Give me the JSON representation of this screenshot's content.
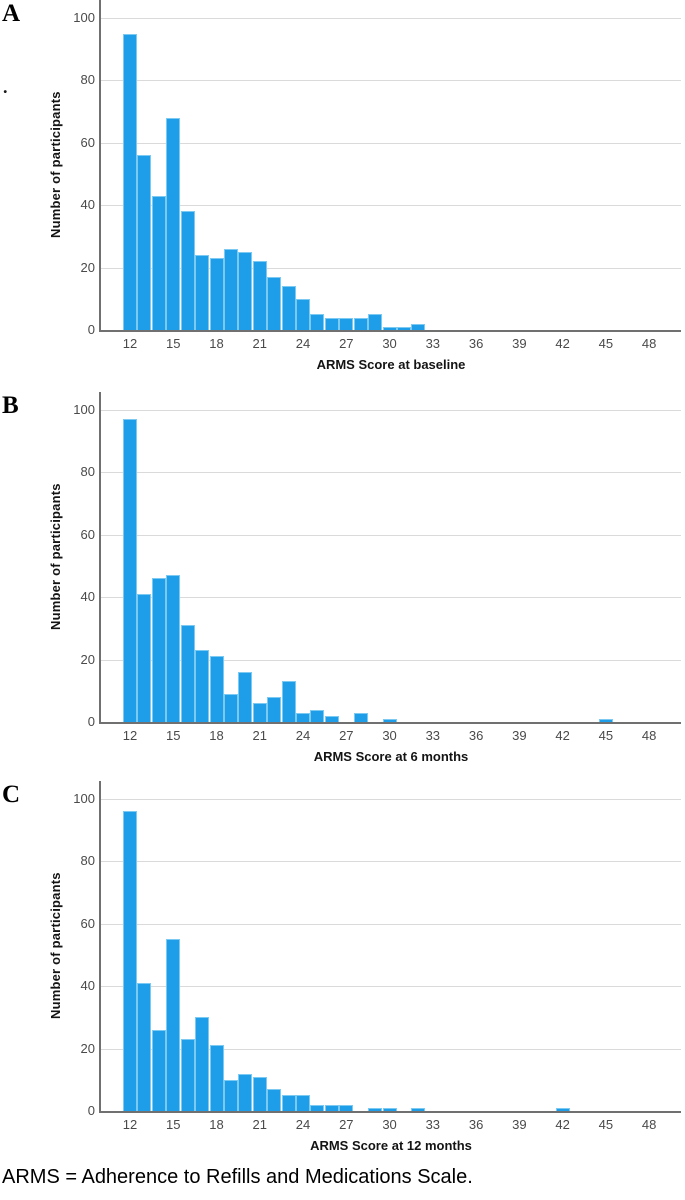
{
  "figure": {
    "footnote": "ARMS = Adherence to Refills and Medications Scale.",
    "stray_mark": "."
  },
  "colors": {
    "bar_fill": "#1E9DE9",
    "bar_border": "#7CC9F2",
    "gridline": "#DADADA",
    "axis_line": "#707070",
    "tick_label": "#4A4A4A",
    "axis_title": "#141414"
  },
  "chart_data": [
    {
      "type": "bar",
      "panel_label": "A",
      "title": "",
      "xlabel": "ARMS Score at baseline",
      "ylabel": "Number of participants",
      "x_start": 12,
      "x_ticks": [
        12,
        15,
        18,
        21,
        24,
        27,
        30,
        33,
        36,
        39,
        42,
        45,
        48
      ],
      "y_ticks": [
        0,
        20,
        40,
        60,
        80,
        100
      ],
      "ylim": [
        0,
        105
      ],
      "grid": true,
      "values": [
        95,
        56,
        43,
        68,
        38,
        24,
        23,
        26,
        25,
        22,
        17,
        14,
        10,
        5,
        4,
        4,
        4,
        5,
        1,
        1,
        2,
        0,
        0,
        0,
        0,
        0,
        0,
        0,
        0,
        0,
        0,
        0,
        0,
        0,
        0,
        0,
        0
      ]
    },
    {
      "type": "bar",
      "panel_label": "B",
      "title": "",
      "xlabel": "ARMS Score at 6 months",
      "ylabel": "Number of participants",
      "x_start": 12,
      "x_ticks": [
        12,
        15,
        18,
        21,
        24,
        27,
        30,
        33,
        36,
        39,
        42,
        45,
        48
      ],
      "y_ticks": [
        0,
        20,
        40,
        60,
        80,
        100
      ],
      "ylim": [
        0,
        105
      ],
      "grid": true,
      "values": [
        97,
        41,
        46,
        47,
        31,
        23,
        21,
        9,
        16,
        6,
        8,
        13,
        3,
        4,
        2,
        0,
        3,
        0,
        1,
        0,
        0,
        0,
        0,
        0,
        0,
        0,
        0,
        0,
        0,
        0,
        0,
        0,
        0,
        1,
        0,
        0,
        0
      ]
    },
    {
      "type": "bar",
      "panel_label": "C",
      "title": "",
      "xlabel": "ARMS Score at 12 months",
      "ylabel": "Number of participants",
      "x_start": 12,
      "x_ticks": [
        12,
        15,
        18,
        21,
        24,
        27,
        30,
        33,
        36,
        39,
        42,
        45,
        48
      ],
      "y_ticks": [
        0,
        20,
        40,
        60,
        80,
        100
      ],
      "ylim": [
        0,
        105
      ],
      "grid": true,
      "values": [
        96,
        41,
        26,
        55,
        23,
        30,
        21,
        10,
        12,
        11,
        7,
        5,
        5,
        2,
        2,
        2,
        0,
        1,
        1,
        0,
        1,
        0,
        0,
        0,
        0,
        0,
        0,
        0,
        0,
        0,
        1,
        0,
        0,
        0,
        0,
        0,
        0
      ]
    }
  ]
}
